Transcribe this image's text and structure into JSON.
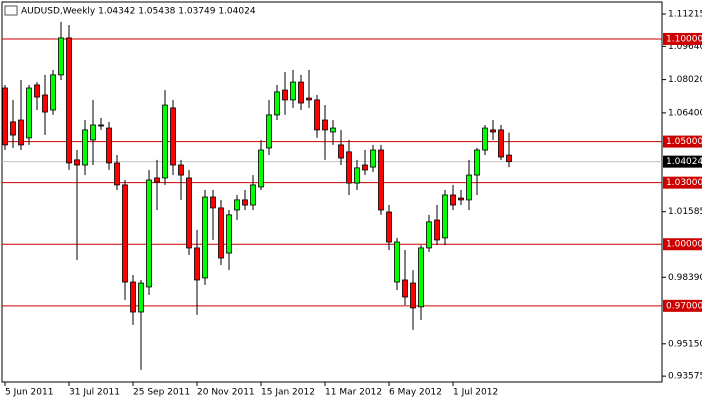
{
  "chart_data": {
    "type": "candlestick",
    "title": "AUDUSD,Weekly  1.04342 1.05438 1.03749 1.04024",
    "categories": [
      "5 Jun 2011",
      null,
      null,
      null,
      null,
      null,
      null,
      null,
      "31 Jul 2011",
      null,
      null,
      null,
      null,
      null,
      null,
      null,
      "25 Sep 2011",
      null,
      null,
      null,
      null,
      null,
      null,
      null,
      "20 Nov 2011",
      null,
      null,
      null,
      null,
      null,
      null,
      null,
      "15 Jan 2012",
      null,
      null,
      null,
      null,
      null,
      null,
      null,
      "11 Mar 2012",
      null,
      null,
      null,
      null,
      null,
      null,
      null,
      "6 May 2012",
      null,
      null,
      null,
      null,
      null,
      null,
      null,
      "1 Jul 2012",
      null,
      null,
      null,
      null,
      null,
      null,
      null
    ],
    "open": [
      1.0761,
      1.0596,
      1.0605,
      1.0518,
      1.0776,
      1.0727,
      1.0654,
      1.0825,
      1.1005,
      1.0411,
      1.0386,
      1.0508,
      1.0581,
      1.0566,
      1.0396,
      1.0289,
      0.9816,
      0.967,
      0.9792,
      1.0323,
      1.0323,
      1.0664,
      1.0386,
      1.0323,
      0.9982,
      0.9836,
      1.023,
      1.0177,
      0.9957,
      1.0167,
      1.0216,
      1.0191,
      1.0279,
      1.0469,
      1.063,
      1.0751,
      1.0703,
      1.079,
      1.0712,
      1.0703,
      1.0605,
      1.0547,
      1.0484,
      1.045,
      1.0298,
      1.0386,
      1.0376,
      1.0459,
      1.0157,
      0.9816,
      0.9826,
      0.9811,
      0.9695,
      0.9982,
      1.0118,
      1.0031,
      1.024,
      1.0225,
      1.0216,
      1.0337,
      1.0459,
      1.0557,
      1.0557,
      1.04342
    ],
    "high": [
      1.0776,
      1.0703,
      1.08,
      1.0776,
      1.079,
      1.0825,
      1.0849,
      1.1083,
      1.1068,
      1.0459,
      1.0605,
      1.0703,
      1.0615,
      1.0596,
      1.0435,
      1.0313,
      0.985,
      0.9826,
      1.0362,
      1.0411,
      1.0751,
      1.0703,
      1.0411,
      1.0362,
      1.007,
      1.0264,
      1.0264,
      1.0216,
      1.0167,
      1.024,
      1.0264,
      1.0337,
      1.0508,
      1.0703,
      1.0776,
      1.0839,
      1.0849,
      1.0825,
      1.0849,
      1.0727,
      1.0678,
      1.0605,
      1.0557,
      1.0508,
      1.0411,
      1.0459,
      1.0484,
      1.0484,
      1.0191,
      1.0031,
      0.9972,
      0.9874,
      0.9996,
      1.0143,
      1.0191,
      1.0264,
      1.0289,
      1.0264,
      1.0411,
      1.0469,
      1.0581,
      1.0605,
      1.0581,
      1.05438
    ],
    "low": [
      1.0459,
      1.0469,
      1.0459,
      1.0484,
      1.0654,
      1.0532,
      1.063,
      1.08,
      1.0362,
      0.9923,
      1.0337,
      1.0386,
      1.0557,
      1.0362,
      1.0264,
      0.9729,
      0.9607,
      0.9388,
      0.9753,
      1.0167,
      1.0289,
      1.0337,
      1.0216,
      0.9948,
      0.9656,
      0.9802,
      1.0021,
      0.9899,
      0.9874,
      1.0118,
      1.0167,
      1.0167,
      1.0264,
      1.0435,
      1.0605,
      1.063,
      1.0664,
      1.0654,
      1.0664,
      1.0518,
      1.0411,
      1.0484,
      1.0386,
      1.024,
      1.0264,
      1.0337,
      1.0352,
      1.0143,
      0.9972,
      0.9777,
      0.9704,
      0.9583,
      0.9631,
      0.9962,
      0.9996,
      0.9996,
      1.0167,
      1.0191,
      1.0167,
      1.024,
      1.0435,
      1.0508,
      1.0411,
      1.03749
    ],
    "close": [
      1.0484,
      1.0532,
      1.0484,
      1.0761,
      1.0717,
      1.0644,
      1.0825,
      1.1005,
      1.0396,
      1.0386,
      1.0557,
      1.0581,
      1.0576,
      1.0396,
      1.0289,
      0.9816,
      0.967,
      0.9811,
      1.0313,
      1.0303,
      1.0678,
      1.0386,
      1.0337,
      0.9982,
      0.9826,
      1.023,
      1.0177,
      0.9933,
      1.0143,
      1.0216,
      1.0191,
      1.0289,
      1.0459,
      1.063,
      1.0742,
      1.0703,
      1.079,
      1.0688,
      1.0703,
      1.0557,
      1.0557,
      1.0566,
      1.042,
      1.0298,
      1.0372,
      1.0362,
      1.0459,
      1.0167,
      1.0011,
      1.0011,
      0.9743,
      0.969,
      0.9982,
      1.0109,
      1.0021,
      1.024,
      1.0191,
      1.0216,
      1.0337,
      1.0459,
      1.0566,
      1.0547,
      1.0425,
      1.04024
    ],
    "up_color": "#00ff00",
    "down_color": "#ff0000",
    "ylim": [
      0.9329,
      1.118
    ],
    "yticks": [
      1.11215,
      {
        "value": 1.0964,
        "label": "1.09640"
      },
      {
        "value": 1.0802,
        "label": "1.08020"
      },
      {
        "value": 1.064,
        "label": "1.06400"
      },
      1.01585,
      {
        "value": 0.9839,
        "label": "0.98390"
      },
      {
        "value": 0.9515,
        "label": "0.95150"
      },
      0.93575
    ],
    "levels": [
      {
        "value": 1.1,
        "label": "1.10000"
      },
      {
        "value": 1.05,
        "label": "1.05000"
      },
      {
        "value": 1.03,
        "label": "1.03000"
      },
      {
        "value": 1.0,
        "label": "1.00000"
      },
      {
        "value": 0.97,
        "label": "0.97000"
      }
    ],
    "level_color": "#cc0000",
    "last_price": {
      "value": 1.04024,
      "label": "1.04024"
    }
  }
}
